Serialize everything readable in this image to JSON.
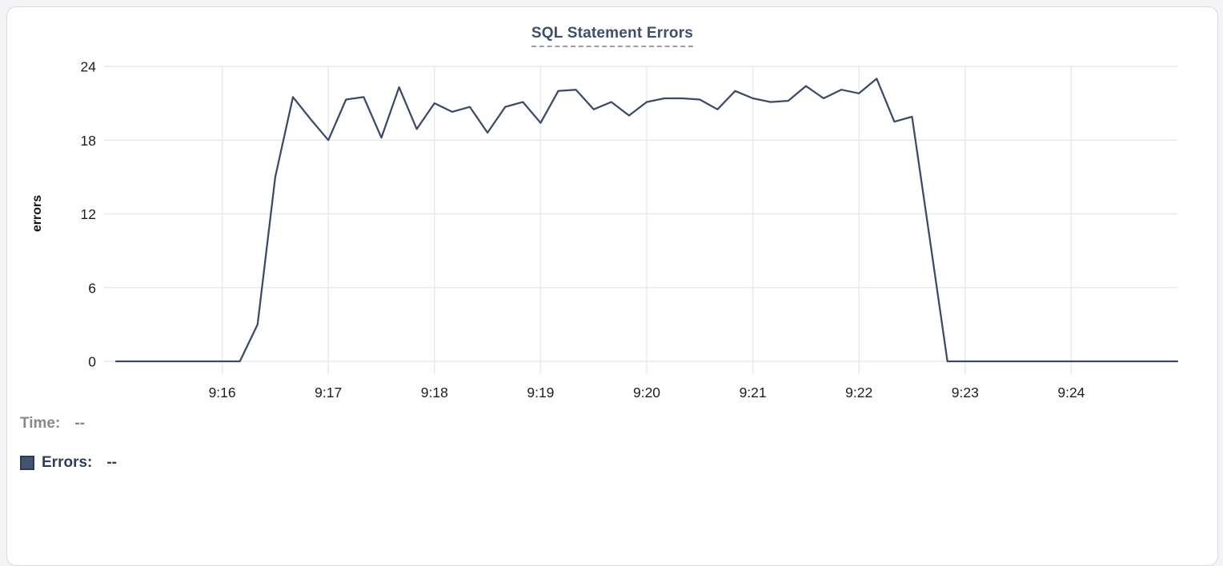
{
  "page": {
    "background": "#f4f4f6",
    "card_background": "#ffffff",
    "card_border": "#d9dade"
  },
  "colors": {
    "accent_navy": "#3d4f6e",
    "series_line": "#3b4a68",
    "gridline": "#e9e9ec",
    "axis_text": "#1d1d1f",
    "muted_gray": "#85898f",
    "title_underline": "#95a0b6"
  },
  "chart_data": {
    "type": "line",
    "title": "SQL Statement Errors",
    "xlabel": "",
    "ylabel": "errors",
    "grid": true,
    "legend_position": "bottom-left",
    "ylim": [
      0,
      24
    ],
    "y_ticks": [
      0,
      6,
      12,
      18,
      24
    ],
    "x_domain_seconds": [
      0,
      600
    ],
    "sample_interval_seconds": 10,
    "x_tick_seconds": [
      60,
      120,
      180,
      240,
      300,
      360,
      420,
      480,
      540
    ],
    "x_tick_labels": [
      "9:16",
      "9:17",
      "9:18",
      "9:19",
      "9:20",
      "9:21",
      "9:22",
      "9:23",
      "9:24"
    ],
    "series": [
      {
        "name": "Errors",
        "color": "#3b4a68",
        "x_times": [
          "9:15:00",
          "9:15:10",
          "9:15:20",
          "9:15:30",
          "9:15:40",
          "9:15:50",
          "9:16:00",
          "9:16:10",
          "9:16:20",
          "9:16:30",
          "9:16:40",
          "9:16:50",
          "9:17:00",
          "9:17:10",
          "9:17:20",
          "9:17:30",
          "9:17:40",
          "9:17:50",
          "9:18:00",
          "9:18:10",
          "9:18:20",
          "9:18:30",
          "9:18:40",
          "9:18:50",
          "9:19:00",
          "9:19:10",
          "9:19:20",
          "9:19:30",
          "9:19:40",
          "9:19:50",
          "9:20:00",
          "9:20:10",
          "9:20:20",
          "9:20:30",
          "9:20:40",
          "9:20:50",
          "9:21:00",
          "9:21:10",
          "9:21:20",
          "9:21:30",
          "9:21:40",
          "9:21:50",
          "9:22:00",
          "9:22:10",
          "9:22:20",
          "9:22:30",
          "9:22:40",
          "9:22:50",
          "9:23:00",
          "9:23:10",
          "9:23:20",
          "9:23:30",
          "9:23:40",
          "9:23:50",
          "9:24:00",
          "9:24:10",
          "9:24:20",
          "9:24:30",
          "9:24:40",
          "9:24:50",
          "9:25:00"
        ],
        "values": [
          0,
          0,
          0,
          0,
          0,
          0,
          0,
          0,
          3,
          15,
          21.5,
          19.7,
          18,
          21.3,
          21.5,
          18.2,
          22.3,
          18.9,
          21,
          20.3,
          20.7,
          18.6,
          20.7,
          21.1,
          19.4,
          22,
          22.1,
          20.5,
          21.1,
          20,
          21.1,
          21.4,
          21.4,
          21.3,
          20.5,
          22,
          21.4,
          21.1,
          21.2,
          22.4,
          21.4,
          22.1,
          21.8,
          23,
          19.5,
          19.9,
          10,
          0,
          0,
          0,
          0,
          0,
          0,
          0,
          0,
          0,
          0,
          0,
          0,
          0,
          0
        ]
      }
    ]
  },
  "legend": {
    "time_label": "Time:",
    "time_value": "--",
    "errors_label": "Errors:",
    "errors_value": "--",
    "swatch_color": "#44536f"
  }
}
